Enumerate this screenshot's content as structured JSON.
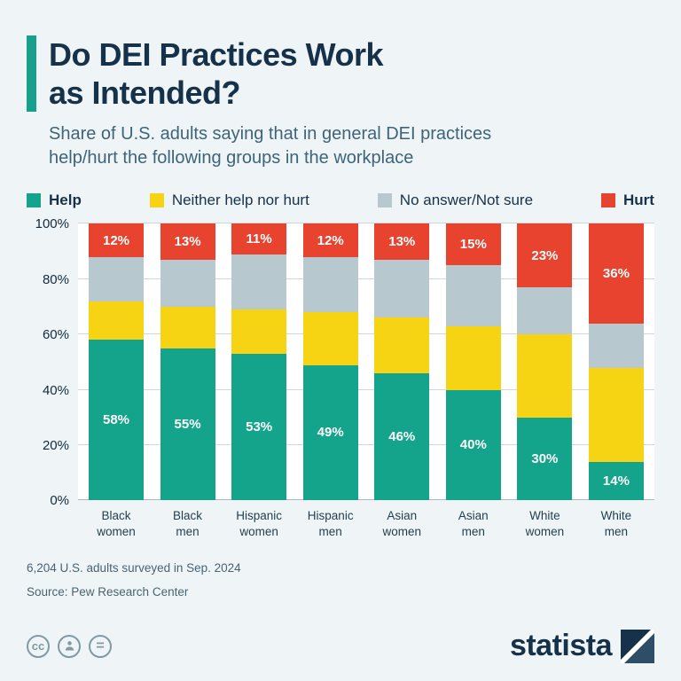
{
  "header": {
    "title_line1": "Do DEI Practices Work",
    "title_line2": "as Intended?",
    "subtitle_line1": "Share of U.S. adults saying that in general DEI practices",
    "subtitle_line2": "help/hurt the following groups in the workplace"
  },
  "colors": {
    "accent": "#18a08c",
    "help": "#14a38b",
    "neither": "#f7d413",
    "no_answer": "#b7c9ce",
    "hurt": "#e8432e",
    "title": "#16314a",
    "background": "#eff5f7"
  },
  "legend": [
    {
      "label": "Help",
      "color": "#14a38b",
      "bold": true
    },
    {
      "label": "Neither help nor hurt",
      "color": "#f7d413",
      "bold": false
    },
    {
      "label": "No answer/Not sure",
      "color": "#b7c9ce",
      "bold": false
    },
    {
      "label": "Hurt",
      "color": "#e8432e",
      "bold": true
    }
  ],
  "chart_data": {
    "type": "bar",
    "stacked": true,
    "title": "Do DEI Practices Work as Intended?",
    "xlabel": "",
    "ylabel": "",
    "ylim": [
      0,
      100
    ],
    "yticks": [
      "0%",
      "20%",
      "40%",
      "60%",
      "80%",
      "100%"
    ],
    "grid": true,
    "legend_position": "top",
    "categories": [
      "Black women",
      "Black men",
      "Hispanic women",
      "Hispanic men",
      "Asian women",
      "Asian men",
      "White women",
      "White men"
    ],
    "series": [
      {
        "name": "Help",
        "color": "#14a38b",
        "labeled": true,
        "values": [
          58,
          55,
          53,
          49,
          46,
          40,
          30,
          14
        ]
      },
      {
        "name": "Neither help nor hurt",
        "color": "#f7d413",
        "labeled": false,
        "values": [
          14,
          15,
          16,
          19,
          20,
          23,
          30,
          34
        ]
      },
      {
        "name": "No answer/Not sure",
        "color": "#b7c9ce",
        "labeled": false,
        "values": [
          16,
          17,
          20,
          20,
          21,
          22,
          17,
          16
        ]
      },
      {
        "name": "Hurt",
        "color": "#e8432e",
        "labeled": true,
        "values": [
          12,
          13,
          11,
          12,
          13,
          15,
          23,
          36
        ]
      }
    ]
  },
  "footer": {
    "note1": "6,204 U.S. adults surveyed in Sep. 2024",
    "note2": "Source: Pew Research Center",
    "logo": "statista"
  }
}
